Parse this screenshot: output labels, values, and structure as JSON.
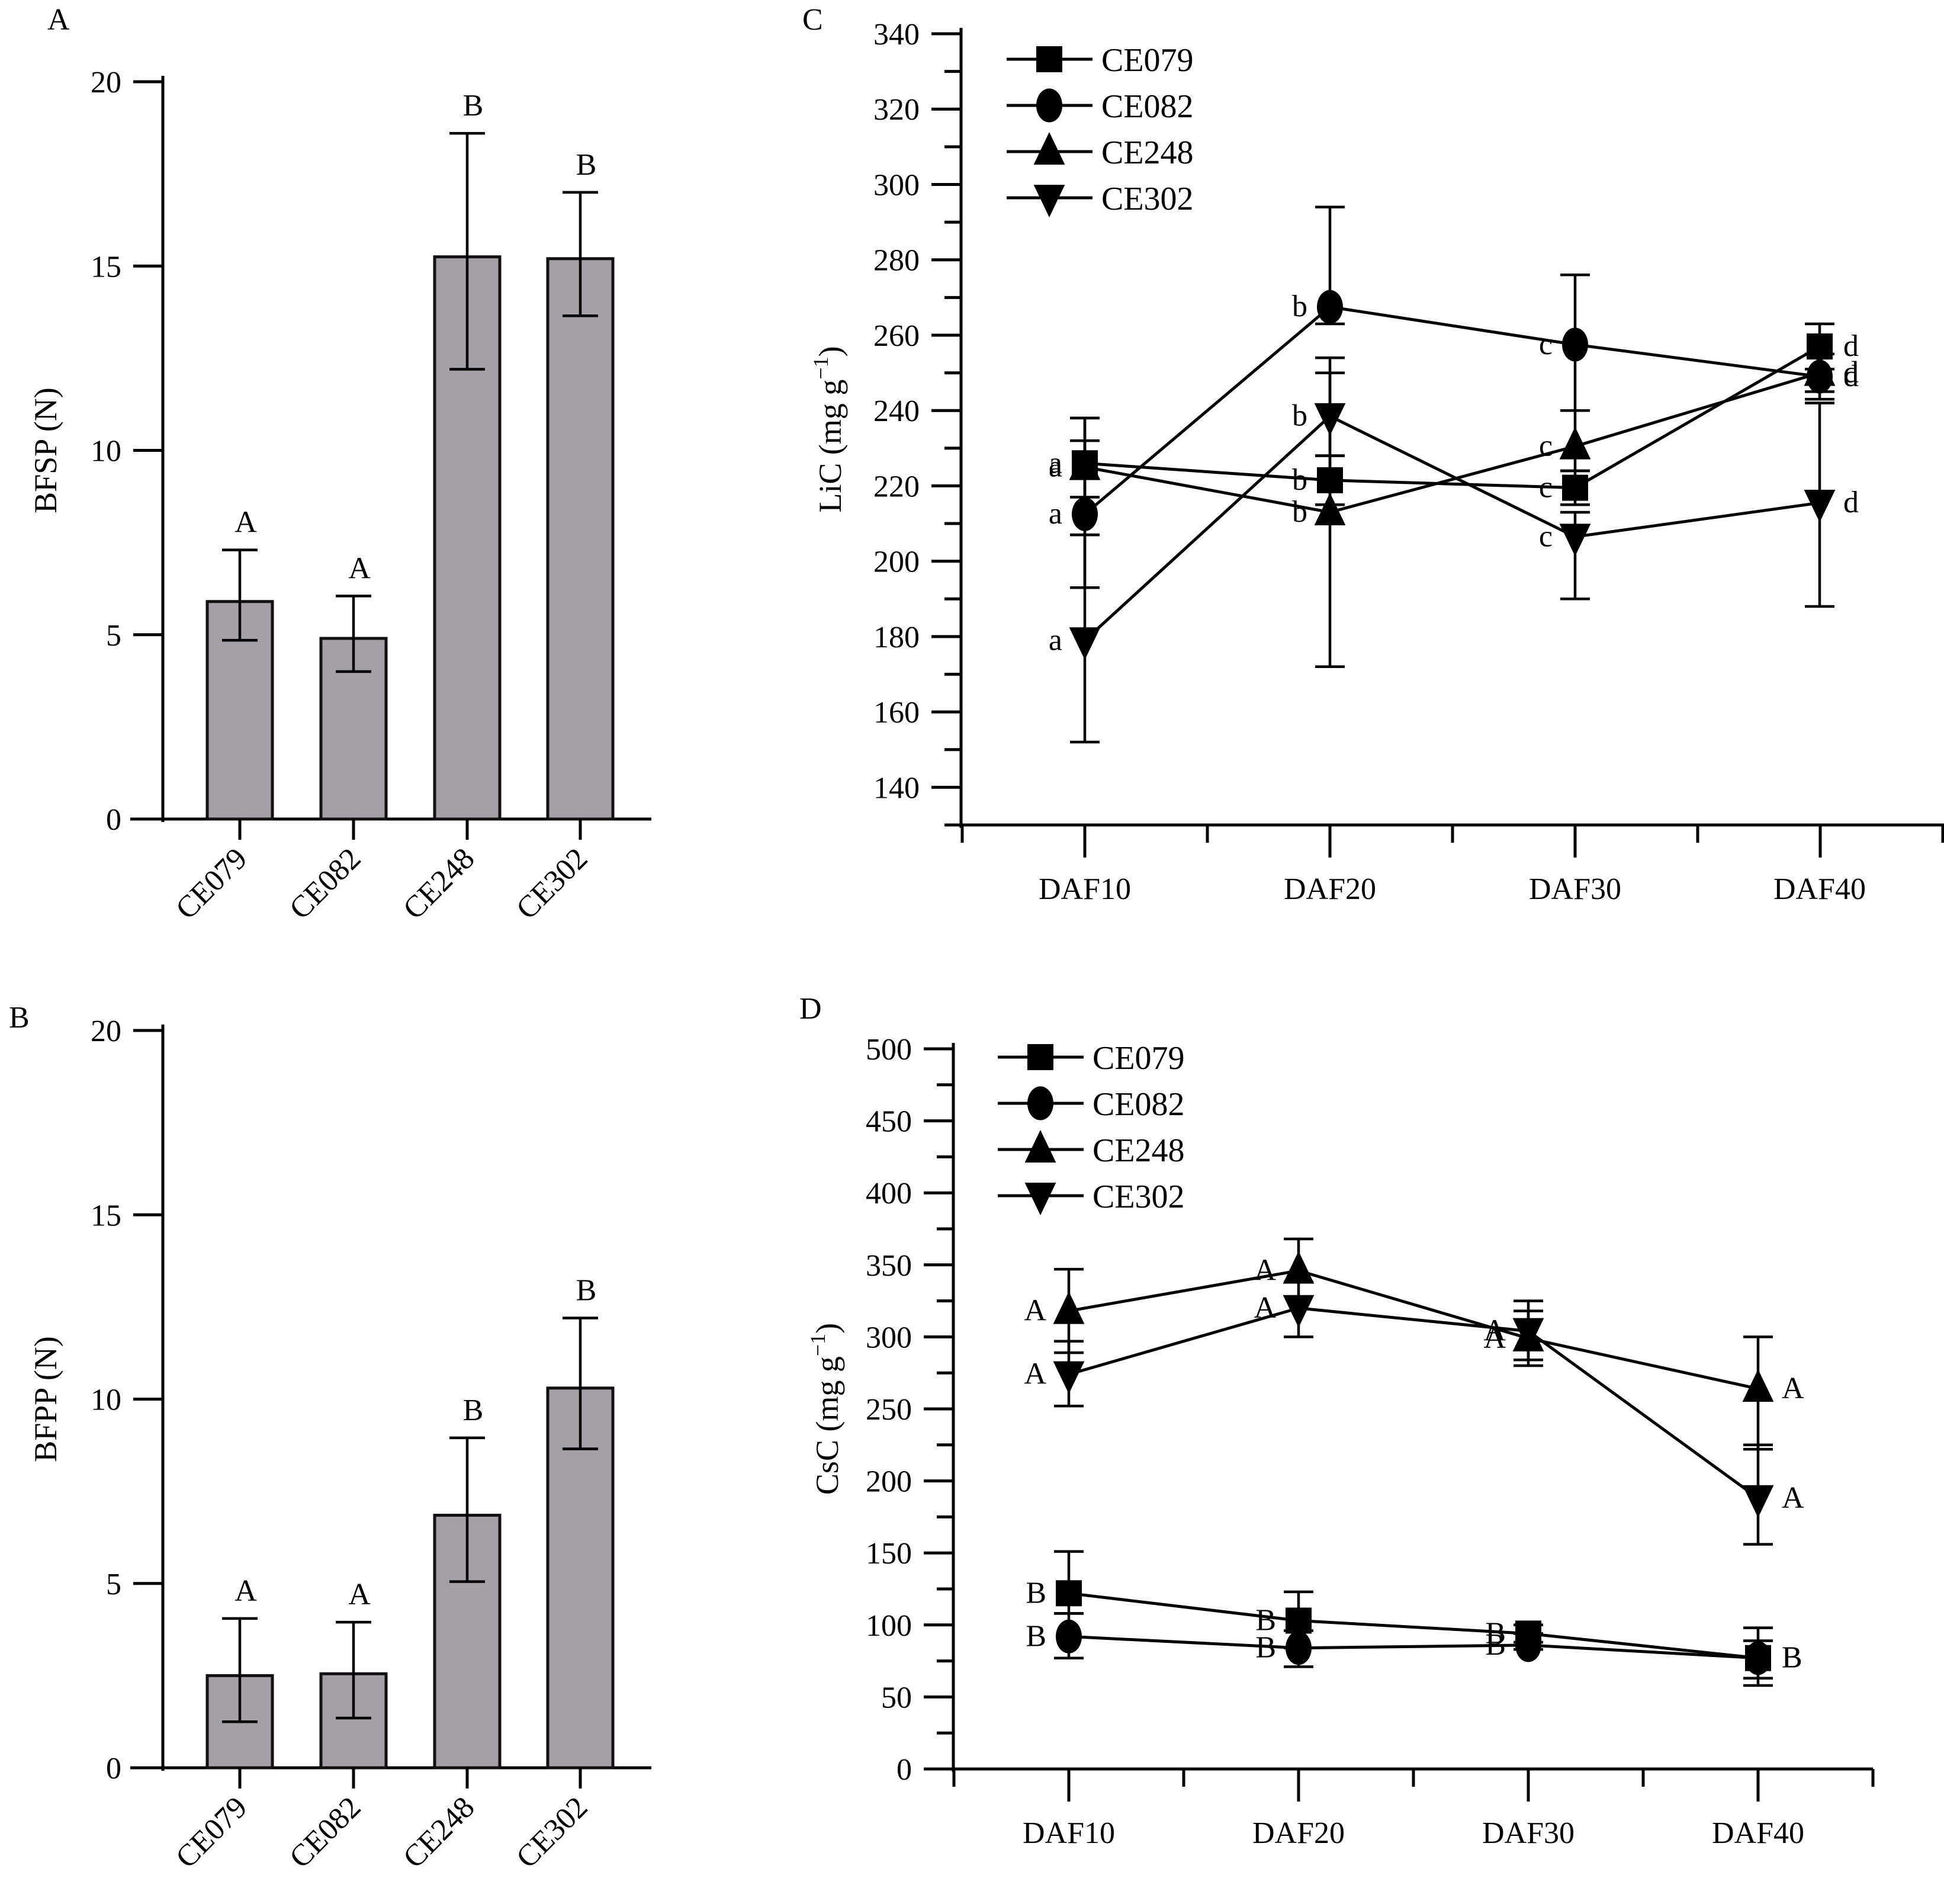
{
  "figure": {
    "panels": [
      "A",
      "B",
      "C",
      "D"
    ]
  },
  "chart_data": [
    {
      "id": "A",
      "panel_label": "A",
      "type": "bar",
      "title": "",
      "xlabel": "",
      "ylabel": "BFSP (N)",
      "ylim": [
        0,
        20
      ],
      "yticks": [
        0,
        5,
        10,
        15,
        20
      ],
      "categories": [
        "CE079",
        "CE082",
        "CE248",
        "CE302"
      ],
      "values": [
        5.9,
        4.9,
        15.25,
        15.2
      ],
      "error_low": [
        4.85,
        4.0,
        12.2,
        13.65
      ],
      "error_high": [
        7.3,
        6.05,
        18.6,
        17.0
      ],
      "significance": [
        "A",
        "A",
        "B",
        "B"
      ],
      "bar_color": "#a3a1a6",
      "grid": false
    },
    {
      "id": "B",
      "panel_label": "B",
      "type": "bar",
      "title": "",
      "xlabel": "",
      "ylabel": "BFPP (N)",
      "ylim": [
        0,
        20
      ],
      "yticks": [
        0,
        5,
        10,
        15,
        20
      ],
      "categories": [
        "CE079",
        "CE082",
        "CE248",
        "CE302"
      ],
      "values": [
        2.5,
        2.55,
        6.85,
        10.3
      ],
      "error_low": [
        1.25,
        1.35,
        5.05,
        8.65
      ],
      "error_high": [
        4.05,
        3.95,
        8.95,
        12.2
      ],
      "significance": [
        "A",
        "A",
        "B",
        "B"
      ],
      "bar_color": "#a3a1a6",
      "grid": false
    },
    {
      "id": "C",
      "panel_label": "C",
      "type": "line",
      "title": "",
      "xlabel": "",
      "ylabel": "LiC (mg g",
      "ylabel_sup": "−1",
      "ylabel_close": ")",
      "ylim": [
        130,
        340
      ],
      "yticks": [
        140,
        160,
        180,
        200,
        220,
        240,
        260,
        280,
        300,
        320,
        340
      ],
      "x": [
        "DAF10",
        "DAF20",
        "DAF30",
        "DAF40"
      ],
      "legend_position": "top-left",
      "series": [
        {
          "name": "CE079",
          "marker": "square",
          "values": [
            226,
            221.5,
            219.5,
            257
          ],
          "error_low": [
            217,
            215,
            215,
            251
          ],
          "error_high": [
            238,
            228,
            224,
            263
          ],
          "significance": [
            "a",
            "b",
            "c",
            "d"
          ]
        },
        {
          "name": "CE082",
          "marker": "circle",
          "values": [
            212.5,
            267.5,
            257.5,
            249
          ],
          "error_low": [
            207,
            263,
            240,
            243
          ],
          "error_high": [
            238,
            294,
            276,
            255
          ],
          "significance": [
            "a",
            "b",
            "c",
            "d"
          ]
        },
        {
          "name": "CE248",
          "marker": "triangle-up",
          "values": [
            225,
            213,
            230.5,
            250
          ],
          "error_low": [
            193,
            172,
            224,
            245
          ],
          "error_high": [
            232,
            254,
            240,
            255
          ],
          "significance": [
            "a",
            "b",
            "c",
            "d"
          ]
        },
        {
          "name": "CE302",
          "marker": "triangle-down",
          "values": [
            179,
            238.5,
            206.5,
            215.5
          ],
          "error_low": [
            152,
            228,
            190,
            188
          ],
          "error_high": [
            207,
            250,
            213,
            242
          ],
          "significance": [
            "a",
            "b",
            "c",
            "d"
          ]
        }
      ],
      "grid": false
    },
    {
      "id": "D",
      "panel_label": "D",
      "type": "line",
      "title": "",
      "xlabel": "",
      "ylabel": "CsC (mg g",
      "ylabel_sup": "−1",
      "ylabel_close": ")",
      "ylim": [
        0,
        500
      ],
      "yticks": [
        0,
        50,
        100,
        150,
        200,
        250,
        300,
        350,
        400,
        450,
        500
      ],
      "x": [
        "DAF10",
        "DAF20",
        "DAF30",
        "DAF40"
      ],
      "legend_position": "top-left",
      "series": [
        {
          "name": "CE079",
          "marker": "square",
          "values": [
            122,
            103,
            94,
            77
          ],
          "error_low": [
            108,
            84,
            88,
            63
          ],
          "error_high": [
            151,
            123,
            100,
            98
          ],
          "significance": [
            "B",
            "B",
            "B",
            "B"
          ]
        },
        {
          "name": "CE082",
          "marker": "circle",
          "values": [
            92,
            84,
            86,
            77
          ],
          "error_low": [
            77,
            71,
            83,
            58
          ],
          "error_high": [
            108,
            96,
            94,
            89
          ],
          "significance": [
            "B",
            "B",
            "B",
            "B"
          ]
        },
        {
          "name": "CE248",
          "marker": "triangle-up",
          "values": [
            318,
            346,
            299,
            264
          ],
          "error_low": [
            289,
            338,
            280,
            222
          ],
          "error_high": [
            347,
            368,
            318,
            300
          ],
          "significance": [
            "A",
            "A",
            "A",
            "A"
          ]
        },
        {
          "name": "CE302",
          "marker": "triangle-down",
          "values": [
            274,
            320,
            304,
            188
          ],
          "error_low": [
            252,
            300,
            284,
            156
          ],
          "error_high": [
            297,
            338,
            325,
            225
          ],
          "significance": [
            "A",
            "A",
            "A",
            "A"
          ]
        }
      ],
      "grid": false
    }
  ]
}
